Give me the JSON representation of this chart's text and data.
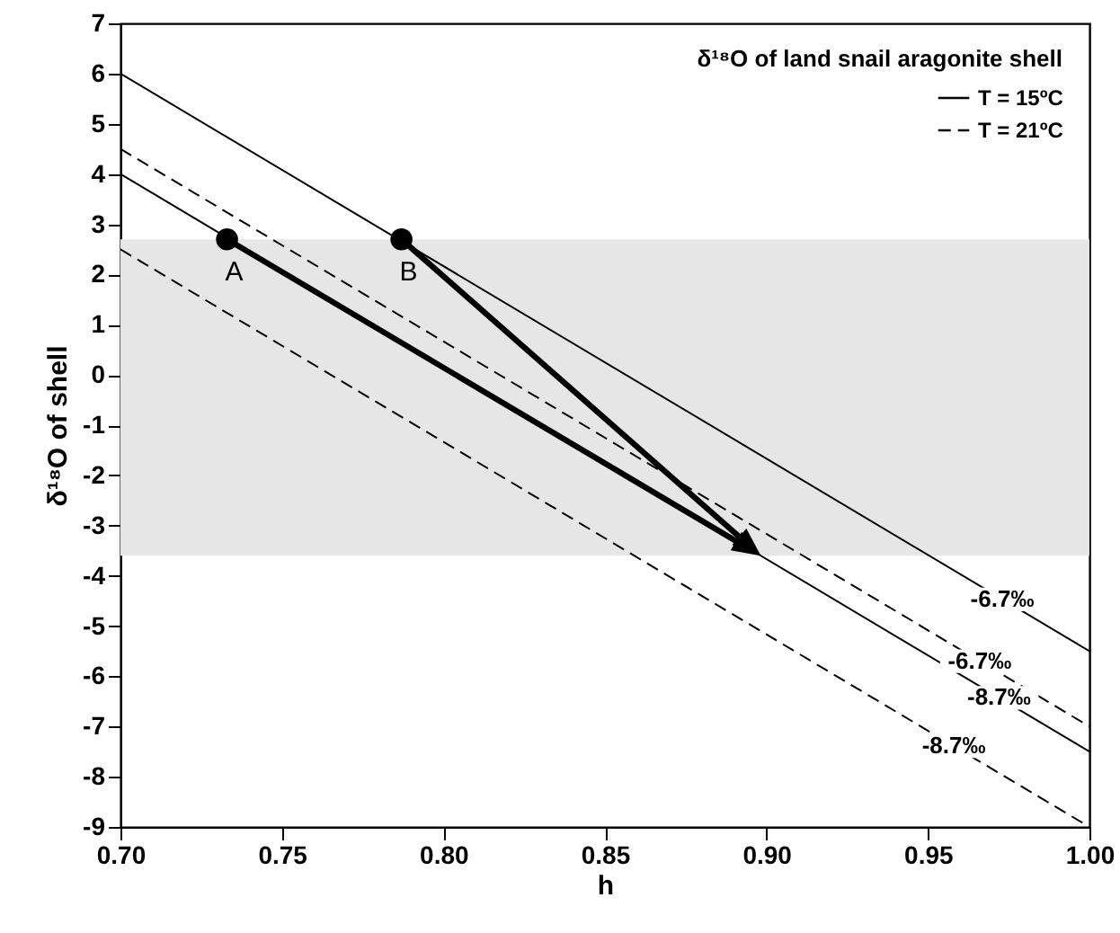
{
  "chart_data": {
    "type": "line",
    "xlabel": "h",
    "ylabel": "δ¹⁸O of shell",
    "legend_title": "δ¹⁸O of land snail aragonite shell",
    "xlim": [
      0.7,
      1.0
    ],
    "xticks": [
      {
        "value": 0.7,
        "label": "0.70"
      },
      {
        "value": 0.75,
        "label": "0.75"
      },
      {
        "value": 0.8,
        "label": "0.80"
      },
      {
        "value": 0.85,
        "label": "0.85"
      },
      {
        "value": 0.9,
        "label": "0.90"
      },
      {
        "value": 0.95,
        "label": "0.95"
      },
      {
        "value": 1.0,
        "label": "1.00"
      }
    ],
    "ylim": [
      -9,
      7
    ],
    "yticks": [
      -9,
      -8,
      -7,
      -6,
      -5,
      -4,
      -3,
      -2,
      -1,
      0,
      1,
      2,
      3,
      4,
      5,
      6,
      7
    ],
    "grid": false,
    "legend": "top right",
    "bands": [
      {
        "axis": "y",
        "from": -3.6,
        "to": 2.7,
        "color": "#e6e6e6"
      }
    ],
    "series": [
      {
        "name": "T = 15ºC",
        "line_style": "solid",
        "color": "#000000",
        "x": [
          0.7,
          1.0
        ],
        "values": [
          6.0,
          -5.5
        ]
      },
      {
        "name": "T = 21ºC",
        "line_style": "dashed",
        "color": "#000000",
        "x": [
          0.7,
          1.0
        ],
        "values": [
          4.5,
          -7.0
        ]
      },
      {
        "line_style": "solid",
        "color": "#000000",
        "x": [
          0.7,
          1.0
        ],
        "values": [
          4.0,
          -7.5
        ]
      },
      {
        "line_style": "dashed",
        "color": "#000000",
        "x": [
          0.7,
          1.0
        ],
        "values": [
          2.5,
          -9.0
        ]
      },
      {
        "type": "scatter",
        "marker": "circle",
        "color": "#000000",
        "x": [
          0.733,
          0.787
        ],
        "values": [
          2.7,
          2.7
        ]
      }
    ],
    "annotations": [
      {
        "text": "A",
        "x": 0.733,
        "y": 2.7
      },
      {
        "text": "B",
        "x": 0.787,
        "y": 2.7
      },
      {
        "text": "-6.7‰",
        "x": 0.973,
        "y": -4.47
      },
      {
        "text": "-6.7‰",
        "x": 0.966,
        "y": -5.7
      },
      {
        "text": "-8.7‰",
        "x": 0.972,
        "y": -6.43
      },
      {
        "text": "-8.7‰",
        "x": 0.958,
        "y": -7.39
      }
    ]
  }
}
